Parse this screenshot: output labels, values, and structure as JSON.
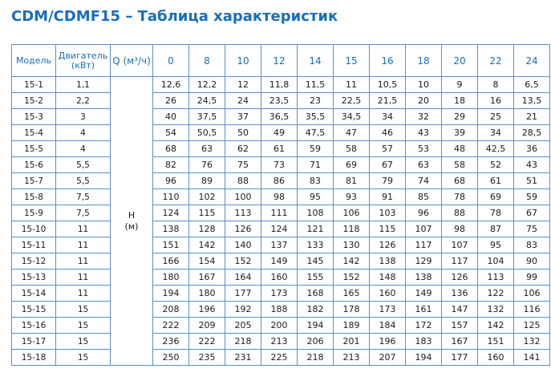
{
  "title": "CDM/CDMF15 – Таблица характеристик",
  "headers": {
    "model": "Модель",
    "motor_line1": "Двигатель",
    "motor_line2": "(кВт)",
    "flow": "Q (м³/ч)",
    "flows": [
      "0",
      "8",
      "10",
      "12",
      "14",
      "15",
      "16",
      "18",
      "20",
      "22",
      "24"
    ]
  },
  "head_label": {
    "line1": "H",
    "line2": "(м)"
  },
  "rows": [
    {
      "model": "15-1",
      "motor": "1,1",
      "values": [
        "12,6",
        "12,2",
        "12",
        "11,8",
        "11,5",
        "11",
        "10,5",
        "10",
        "9",
        "8",
        "6,5"
      ]
    },
    {
      "model": "15-2",
      "motor": "2,2",
      "values": [
        "26",
        "24,5",
        "24",
        "23,5",
        "23",
        "22,5",
        "21,5",
        "20",
        "18",
        "16",
        "13,5"
      ]
    },
    {
      "model": "15-3",
      "motor": "3",
      "values": [
        "40",
        "37,5",
        "37",
        "36,5",
        "35,5",
        "34,5",
        "34",
        "32",
        "29",
        "25",
        "21"
      ]
    },
    {
      "model": "15-4",
      "motor": "4",
      "values": [
        "54",
        "50,5",
        "50",
        "49",
        "47,5",
        "47",
        "46",
        "43",
        "39",
        "34",
        "28,5"
      ]
    },
    {
      "model": "15-5",
      "motor": "4",
      "values": [
        "68",
        "63",
        "62",
        "61",
        "59",
        "58",
        "57",
        "53",
        "48",
        "42,5",
        "36"
      ]
    },
    {
      "model": "15-6",
      "motor": "5,5",
      "values": [
        "82",
        "76",
        "75",
        "73",
        "71",
        "69",
        "67",
        "63",
        "58",
        "52",
        "43"
      ]
    },
    {
      "model": "15-7",
      "motor": "5,5",
      "values": [
        "96",
        "89",
        "88",
        "86",
        "83",
        "81",
        "79",
        "74",
        "68",
        "61",
        "51"
      ]
    },
    {
      "model": "15-8",
      "motor": "7,5",
      "values": [
        "110",
        "102",
        "100",
        "98",
        "95",
        "93",
        "91",
        "85",
        "78",
        "69",
        "59"
      ]
    },
    {
      "model": "15-9",
      "motor": "7,5",
      "values": [
        "124",
        "115",
        "113",
        "111",
        "108",
        "106",
        "103",
        "96",
        "88",
        "78",
        "67"
      ]
    },
    {
      "model": "15-10",
      "motor": "11",
      "values": [
        "138",
        "128",
        "126",
        "124",
        "121",
        "118",
        "115",
        "107",
        "98",
        "87",
        "75"
      ]
    },
    {
      "model": "15-11",
      "motor": "11",
      "values": [
        "151",
        "142",
        "140",
        "137",
        "133",
        "130",
        "126",
        "117",
        "107",
        "95",
        "83"
      ]
    },
    {
      "model": "15-12",
      "motor": "11",
      "values": [
        "166",
        "154",
        "152",
        "149",
        "145",
        "142",
        "138",
        "129",
        "117",
        "104",
        "90"
      ]
    },
    {
      "model": "15-13",
      "motor": "11",
      "values": [
        "180",
        "167",
        "164",
        "160",
        "155",
        "152",
        "148",
        "138",
        "126",
        "113",
        "99"
      ]
    },
    {
      "model": "15-14",
      "motor": "11",
      "values": [
        "194",
        "180",
        "177",
        "173",
        "168",
        "165",
        "160",
        "149",
        "136",
        "122",
        "106"
      ]
    },
    {
      "model": "15-15",
      "motor": "15",
      "values": [
        "208",
        "196",
        "192",
        "188",
        "182",
        "178",
        "173",
        "161",
        "147",
        "132",
        "116"
      ]
    },
    {
      "model": "15-16",
      "motor": "15",
      "values": [
        "222",
        "209",
        "205",
        "200",
        "194",
        "189",
        "184",
        "172",
        "157",
        "142",
        "125"
      ]
    },
    {
      "model": "15-17",
      "motor": "15",
      "values": [
        "236",
        "222",
        "218",
        "213",
        "206",
        "201",
        "196",
        "183",
        "167",
        "151",
        "132"
      ]
    },
    {
      "model": "15-18",
      "motor": "15",
      "values": [
        "250",
        "235",
        "231",
        "225",
        "218",
        "213",
        "207",
        "194",
        "177",
        "160",
        "141"
      ]
    }
  ]
}
